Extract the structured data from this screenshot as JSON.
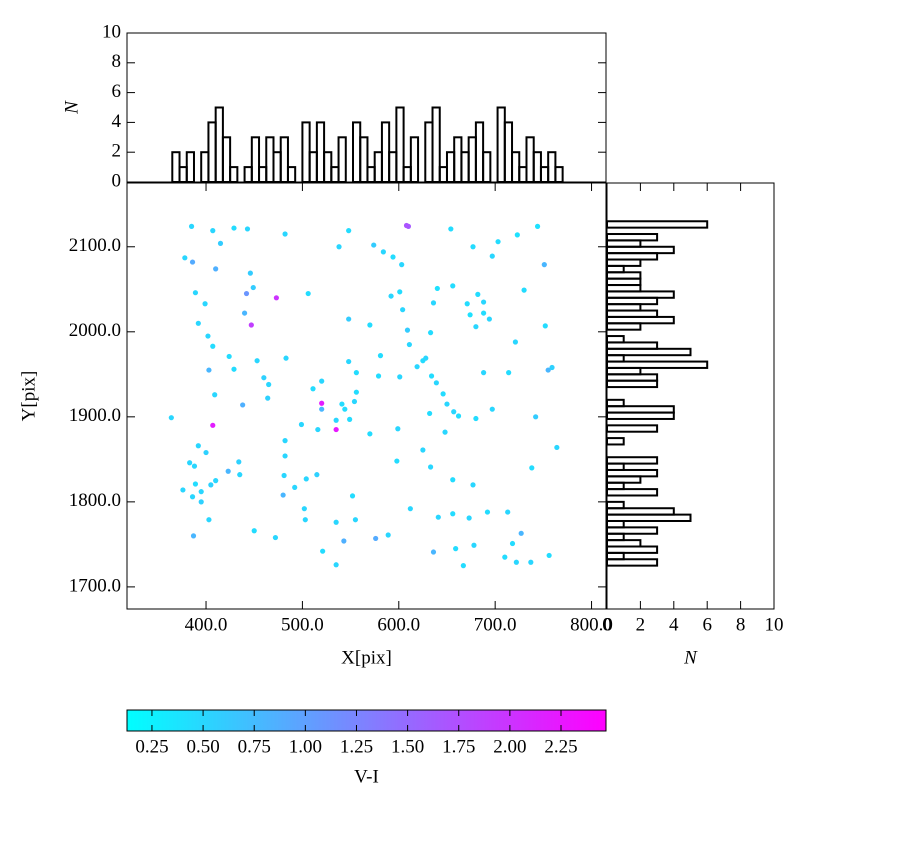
{
  "chart_data": [
    {
      "type": "scatter",
      "xlabel": "X[pix]",
      "ylabel": "Y[pix]",
      "xlim": [
        318,
        815
      ],
      "ylim": [
        1674,
        2175
      ],
      "xticks": [
        {
          "value": 400,
          "label": "400.0"
        },
        {
          "value": 500,
          "label": "500.0"
        },
        {
          "value": 600,
          "label": "600.0"
        },
        {
          "value": 700,
          "label": "700.0"
        },
        {
          "value": 800,
          "label": "800.0"
        }
      ],
      "yticks": [
        {
          "value": 1700,
          "label": "1700.0"
        },
        {
          "value": 1800,
          "label": "1800.0"
        },
        {
          "value": 1900,
          "label": "1900.0"
        },
        {
          "value": 2000,
          "label": "2000.0"
        },
        {
          "value": 2100,
          "label": "2100.0"
        }
      ],
      "colormap": "cool",
      "colorbar": {
        "label": "V-I",
        "clim": [
          0.128,
          2.47
        ],
        "ticks": [
          0.25,
          {
            "value": 0.5,
            "label": "0.50"
          },
          0.75,
          {
            "value": 1.0,
            "label": "1.00"
          },
          1.25,
          {
            "value": 1.5,
            "label": "1.50"
          },
          1.75,
          {
            "value": 2.0,
            "label": "2.00"
          },
          2.25
        ]
      },
      "series": [
        {
          "x": [
            385,
            407,
            429,
            443,
            415,
            482,
            548,
            610,
            608,
            654,
            744,
            378,
            386,
            410,
            538,
            574,
            584,
            594,
            603,
            677,
            697,
            723,
            703,
            751,
            446,
            449,
            389,
            399,
            442,
            473,
            506,
            440,
            447,
            392,
            402,
            407,
            424,
            453,
            483,
            429,
            403,
            409,
            438,
            460,
            465,
            464,
            548,
            592,
            601,
            604,
            609,
            611,
            570,
            633,
            636,
            640,
            656,
            671,
            674,
            680,
            682,
            688,
            688,
            694,
            730,
            721,
            752,
            548,
            556,
            581,
            579,
            601,
            619,
            625,
            628,
            634,
            639,
            646,
            657,
            662,
            650,
            632,
            648,
            680,
            697,
            714,
            688,
            742,
            755,
            759,
            520,
            511,
            554,
            541,
            544,
            535,
            520,
            520,
            535,
            516,
            549,
            556,
            499,
            570,
            599,
            482,
            482,
            407,
            364,
            392,
            400,
            383,
            388,
            423,
            434,
            435,
            395,
            405,
            410,
            389,
            376,
            386,
            395,
            403,
            387,
            481,
            480,
            492,
            504,
            515,
            502,
            503,
            552,
            535,
            555,
            450,
            472,
            521,
            535,
            543,
            576,
            589,
            598,
            625,
            633,
            656,
            677,
            612,
            641,
            656,
            673,
            692,
            713,
            636,
            659,
            678,
            667,
            710,
            718,
            722,
            727,
            737,
            738,
            756,
            764
          ],
          "y": [
            2124,
            2119,
            2122,
            2121,
            2104,
            2115,
            2119,
            2124,
            2125,
            2121,
            2124,
            2087,
            2082,
            2074,
            2100,
            2102,
            2094,
            2088,
            2079,
            2100,
            2089,
            2114,
            2106,
            2079,
            2069,
            2052,
            2046,
            2033,
            2045,
            2040,
            2045,
            2022,
            2008,
            2010,
            1995,
            1983,
            1971,
            1966,
            1969,
            1956,
            1955,
            1926,
            1914,
            1946,
            1938,
            1922,
            2015,
            2042,
            2047,
            2026,
            2002,
            1985,
            2008,
            1999,
            2034,
            2051,
            2054,
            2033,
            2020,
            2006,
            2044,
            2035,
            2022,
            2015,
            2049,
            1988,
            2007,
            1965,
            1952,
            1972,
            1948,
            1947,
            1959,
            1966,
            1969,
            1948,
            1940,
            1927,
            1906,
            1901,
            1915,
            1904,
            1882,
            1898,
            1909,
            1952,
            1952,
            1900,
            1955,
            1958,
            1942,
            1933,
            1918,
            1915,
            1909,
            1896,
            1909,
            1916,
            1885,
            1885,
            1897,
            1929,
            1891,
            1880,
            1886,
            1872,
            1854,
            1890,
            1899,
            1866,
            1858,
            1846,
            1842,
            1836,
            1847,
            1832,
            1812,
            1820,
            1825,
            1821,
            1814,
            1806,
            1800,
            1779,
            1760,
            1831,
            1808,
            1817,
            1827,
            1832,
            1792,
            1779,
            1807,
            1776,
            1779,
            1766,
            1758,
            1742,
            1726,
            1754,
            1757,
            1761,
            1848,
            1861,
            1841,
            1826,
            1820,
            1792,
            1782,
            1786,
            1781,
            1788,
            1788,
            1741,
            1745,
            1749,
            1725,
            1735,
            1751,
            1729,
            1763,
            1729,
            1840,
            1737,
            1864
          ],
          "c": [
            0.5,
            0.5,
            0.45,
            0.5,
            0.6,
            0.5,
            0.45,
            1.65,
            1.7,
            0.45,
            0.4,
            0.5,
            0.9,
            0.85,
            0.5,
            0.6,
            0.5,
            0.45,
            0.5,
            0.45,
            0.5,
            0.4,
            0.45,
            0.8,
            0.6,
            0.6,
            0.5,
            0.5,
            1.1,
            2.0,
            0.45,
            0.8,
            1.9,
            0.5,
            0.5,
            0.45,
            0.45,
            0.5,
            0.5,
            0.45,
            0.8,
            0.5,
            0.85,
            0.55,
            0.5,
            0.55,
            0.6,
            0.5,
            0.45,
            0.5,
            0.6,
            0.5,
            0.45,
            0.45,
            0.5,
            0.4,
            0.45,
            0.45,
            0.4,
            0.5,
            0.45,
            0.5,
            0.45,
            0.5,
            0.45,
            0.5,
            0.45,
            0.5,
            0.45,
            0.45,
            0.45,
            0.5,
            0.5,
            0.45,
            0.5,
            0.45,
            0.5,
            0.45,
            0.5,
            0.45,
            0.5,
            0.45,
            0.5,
            0.45,
            0.5,
            0.45,
            0.5,
            0.6,
            0.8,
            0.55,
            0.5,
            0.45,
            0.5,
            0.45,
            0.45,
            0.5,
            0.8,
            2.2,
            2.25,
            0.5,
            0.45,
            0.45,
            0.5,
            0.45,
            0.5,
            0.5,
            0.5,
            2.2,
            0.5,
            0.5,
            0.55,
            0.5,
            0.5,
            0.8,
            0.55,
            0.5,
            0.5,
            0.55,
            0.5,
            0.45,
            0.5,
            0.5,
            0.55,
            0.5,
            0.8,
            0.5,
            0.8,
            0.5,
            0.5,
            0.55,
            0.5,
            0.5,
            0.45,
            0.5,
            0.5,
            0.45,
            0.5,
            0.45,
            0.5,
            0.85,
            0.9,
            0.5,
            0.45,
            0.5,
            0.5,
            0.45,
            0.5,
            0.5,
            0.5,
            0.45,
            0.5,
            0.45,
            0.5,
            0.8,
            0.45,
            0.5,
            0.45,
            0.45,
            0.45,
            0.5,
            0.8,
            0.5,
            0.45,
            0.45,
            0.5
          ]
        }
      ]
    },
    {
      "type": "histogram",
      "orientation": "vertical",
      "ylabel": "N",
      "color": "#000000",
      "xlim": [
        318,
        815
      ],
      "ylim": [
        0,
        10
      ],
      "yticks": [
        0,
        2,
        4,
        6,
        8,
        10
      ],
      "bins": [
        365,
        372.5,
        380,
        387.5,
        395,
        402.5,
        410,
        417.5,
        425,
        432.5,
        440,
        447.5,
        455,
        462.5,
        470,
        477.5,
        485,
        492.5,
        500,
        507.5,
        515,
        522.5,
        530,
        537.5,
        545,
        552.5,
        560,
        567.5,
        575,
        582.5,
        590,
        597.5,
        605,
        612.5,
        620,
        627.5,
        635,
        642.5,
        650,
        657.5,
        665,
        672.5,
        680,
        687.5,
        695,
        702.5,
        710,
        717.5,
        725,
        732.5,
        740,
        747.5,
        755,
        762.5,
        770
      ],
      "values": [
        2,
        1,
        2,
        0,
        2,
        4,
        5,
        3,
        1,
        0,
        1,
        3,
        1,
        3,
        2,
        3,
        1,
        0,
        4,
        2,
        4,
        2,
        1,
        3,
        0,
        4,
        3,
        1,
        2,
        4,
        2,
        5,
        1,
        3,
        0,
        4,
        5,
        1,
        2,
        3,
        2,
        3,
        4,
        2,
        0,
        5,
        4,
        2,
        1,
        3,
        2,
        1,
        2,
        1
      ]
    },
    {
      "type": "histogram",
      "orientation": "horizontal",
      "xlabel": "N",
      "color": "#000000",
      "xlim": [
        0,
        10
      ],
      "ylim": [
        1674,
        2175
      ],
      "xticks": [
        0,
        2,
        4,
        6,
        8,
        10
      ],
      "bins": [
        1725,
        1732.5,
        1740,
        1747.5,
        1755,
        1762.5,
        1770,
        1777.5,
        1785,
        1792.5,
        1800,
        1807.5,
        1815,
        1822.5,
        1830,
        1837.5,
        1845,
        1852.5,
        1860,
        1867.5,
        1875,
        1882.5,
        1890,
        1897.5,
        1905,
        1912.5,
        1920,
        1927.5,
        1935,
        1942.5,
        1950,
        1957.5,
        1965,
        1972.5,
        1980,
        1987.5,
        1995,
        2002.5,
        2010,
        2017.5,
        2025,
        2032.5,
        2040,
        2047.5,
        2055,
        2062.5,
        2070,
        2077.5,
        2085,
        2092.5,
        2100,
        2107.5,
        2115,
        2122.5,
        2130
      ],
      "values": [
        3,
        1,
        3,
        2,
        1,
        3,
        1,
        5,
        4,
        1,
        0,
        3,
        1,
        2,
        3,
        1,
        3,
        0,
        0,
        1,
        0,
        3,
        0,
        4,
        4,
        1,
        0,
        0,
        3,
        3,
        2,
        6,
        1,
        5,
        3,
        1,
        0,
        2,
        4,
        3,
        2,
        3,
        4,
        2,
        2,
        2,
        1,
        2,
        3,
        4,
        2,
        3,
        0,
        6
      ]
    }
  ]
}
